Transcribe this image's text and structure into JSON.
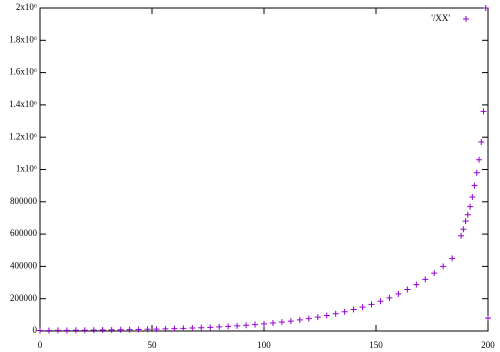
{
  "chart_data": {
    "type": "scatter",
    "marker": "+",
    "series": [
      {
        "name": "'/XX'",
        "color": "#9400d3",
        "x": [
          0,
          4,
          8,
          12,
          16,
          20,
          24,
          28,
          32,
          36,
          40,
          44,
          48,
          52,
          56,
          60,
          64,
          68,
          72,
          76,
          80,
          84,
          88,
          92,
          96,
          100,
          104,
          108,
          112,
          116,
          120,
          124,
          128,
          132,
          136,
          140,
          144,
          148,
          152,
          156,
          160,
          164,
          168,
          172,
          176,
          180,
          184,
          188,
          189,
          190,
          191,
          192,
          193,
          194,
          195,
          196,
          197,
          198,
          199,
          200
        ],
        "values": [
          3000,
          3300,
          3600,
          4000,
          4400,
          4900,
          5400,
          6000,
          6700,
          7500,
          8400,
          9400,
          10500,
          11700,
          13100,
          14600,
          16300,
          18200,
          20300,
          22700,
          25300,
          28300,
          31600,
          35300,
          39400,
          44000,
          49200,
          55000,
          61500,
          68800,
          77000,
          86000,
          96000,
          107000,
          119000,
          133000,
          148000,
          165000,
          184000,
          205000,
          230000,
          257000,
          287000,
          320000,
          358000,
          400000,
          450000,
          590000,
          630000,
          680000,
          720000,
          770000,
          830000,
          900000,
          980000,
          1060000,
          1170000,
          1360000,
          2000000,
          80000
        ]
      }
    ],
    "xlim": [
      0,
      200
    ],
    "xticks": [
      0,
      50,
      100,
      150,
      200
    ],
    "ylim": [
      0,
      2000000
    ],
    "yticks": [
      0,
      200000,
      400000,
      600000,
      800000,
      {
        "value": 1000000,
        "label": "1x10⁶"
      },
      {
        "value": 1200000,
        "label": "1.2x10⁶"
      },
      {
        "value": 1400000,
        "label": "1.4x10⁶"
      },
      {
        "value": 1600000,
        "label": "1.6x10⁶"
      },
      {
        "value": 1800000,
        "label": "1.8x10⁶"
      },
      {
        "value": 2000000,
        "label": "2x10⁶"
      }
    ],
    "grid": false,
    "legend": "top-right"
  }
}
